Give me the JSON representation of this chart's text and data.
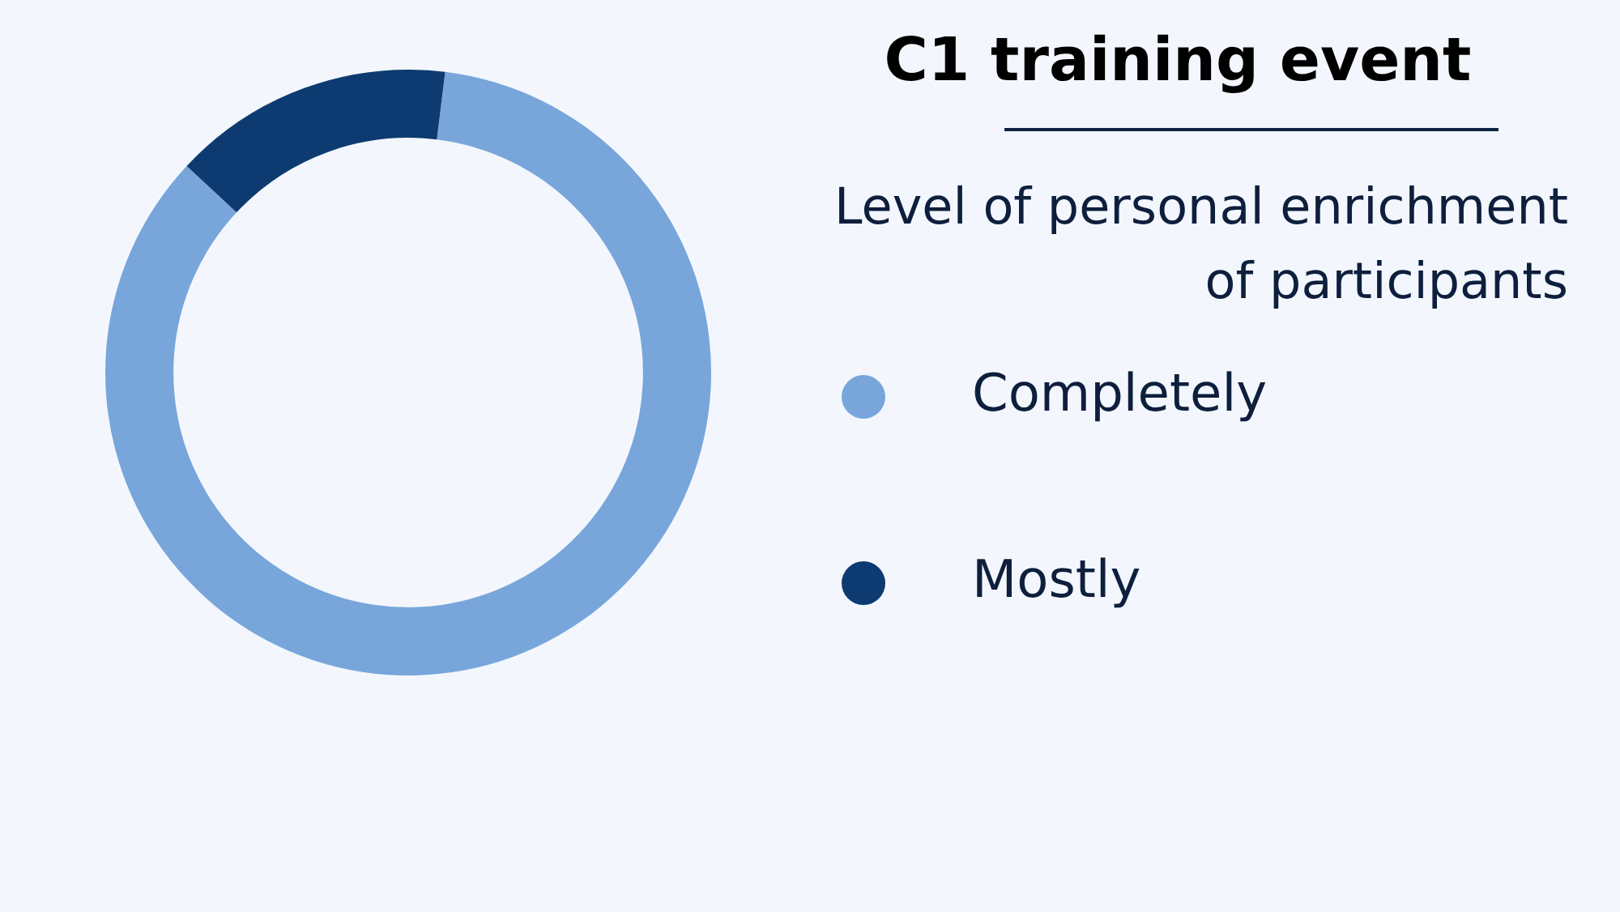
{
  "chart_data": {
    "type": "donut",
    "title": "C1 training event",
    "subtitle": "Level of personal enrichment of participants",
    "categories": [
      "Completely",
      "Mostly"
    ],
    "values": [
      85,
      15
    ],
    "colors": [
      "#78a6db",
      "#0d3b71"
    ],
    "legend": "right"
  }
}
